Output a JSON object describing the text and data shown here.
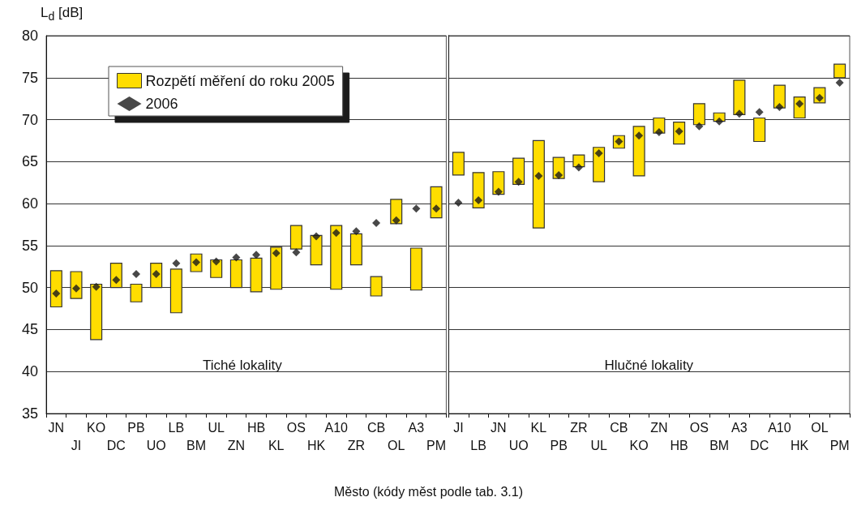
{
  "chart_data": [
    {
      "type": "bar",
      "ylabel": "L$_{d}$ [dB]",
      "xlabel": "Město (kódy měst podle tab. 3.1)",
      "annotations": [
        "Tiché lokality"
      ],
      "legend": "top left",
      "grid": "y",
      "ylim": [
        35,
        80
      ],
      "yticks": [
        35,
        40,
        45,
        50,
        55,
        60,
        65,
        70,
        75,
        80
      ],
      "categories": [
        "JN",
        "JI",
        "KO",
        "DC",
        "PB",
        "UO",
        "LB",
        "BM",
        "UL",
        "ZN",
        "HB",
        "KL",
        "OS",
        "HK",
        "A10",
        "ZR",
        "CB",
        "OL",
        "A3",
        "PM"
      ],
      "series": [
        {
          "name": "Rozpětí měření do roku 2005",
          "color": "#ffdd00",
          "base": [
            47.7,
            48.7,
            43.8,
            50.0,
            48.3,
            50.0,
            47.0,
            51.9,
            51.2,
            50.0,
            49.5,
            49.8,
            54.6,
            52.7,
            49.8,
            52.7,
            49.0,
            57.6,
            49.7,
            58.3
          ],
          "values": [
            4.3,
            3.2,
            6.6,
            2.9,
            2.1,
            2.9,
            5.2,
            2.1,
            2.1,
            3.3,
            4.0,
            5.0,
            2.8,
            3.5,
            7.6,
            3.7,
            2.3,
            2.9,
            5.0,
            3.7
          ]
        },
        {
          "name": "2006",
          "type": "scatter",
          "marker": "diamond",
          "color": "#1a1a1a",
          "values": [
            49.3,
            49.9,
            50.1,
            50.9,
            51.6,
            51.6,
            52.9,
            53.0,
            53.1,
            53.6,
            53.9,
            54.1,
            54.2,
            56.1,
            56.5,
            56.7,
            57.7,
            58.0,
            59.4,
            59.4
          ]
        }
      ]
    },
    {
      "type": "bar",
      "annotations": [
        "Hlučné lokality"
      ],
      "grid": "y",
      "tick_labels": "x",
      "ylim": [
        35,
        80
      ],
      "yticks": [
        35,
        40,
        45,
        50,
        55,
        60,
        65,
        70,
        75,
        80
      ],
      "categories": [
        "JI",
        "LB",
        "JN",
        "UO",
        "KL",
        "PB",
        "ZR",
        "UL",
        "CB",
        "KO",
        "ZN",
        "HB",
        "OS",
        "BM",
        "A3",
        "DC",
        "A10",
        "HK",
        "OL",
        "PM"
      ],
      "series": [
        {
          "color": "#ffdd00",
          "base": [
            63.4,
            59.5,
            61.1,
            62.3,
            57.1,
            63.0,
            64.4,
            62.6,
            66.6,
            63.3,
            68.4,
            67.1,
            69.4,
            69.8,
            70.6,
            67.4,
            71.4,
            70.2,
            72.0,
            75.0
          ],
          "values": [
            2.7,
            4.2,
            2.7,
            3.1,
            10.4,
            2.5,
            1.4,
            4.1,
            1.5,
            5.9,
            1.8,
            2.6,
            2.5,
            1.0,
            4.1,
            2.8,
            2.7,
            2.5,
            1.8,
            1.6
          ]
        },
        {
          "type": "scatter",
          "marker": "diamond",
          "color": "#1a1a1a",
          "values": [
            60.1,
            60.4,
            61.4,
            62.6,
            63.3,
            63.4,
            64.3,
            66.0,
            67.4,
            68.1,
            68.5,
            68.6,
            69.2,
            69.8,
            70.7,
            70.9,
            71.5,
            71.9,
            72.6,
            74.4
          ]
        }
      ]
    }
  ]
}
